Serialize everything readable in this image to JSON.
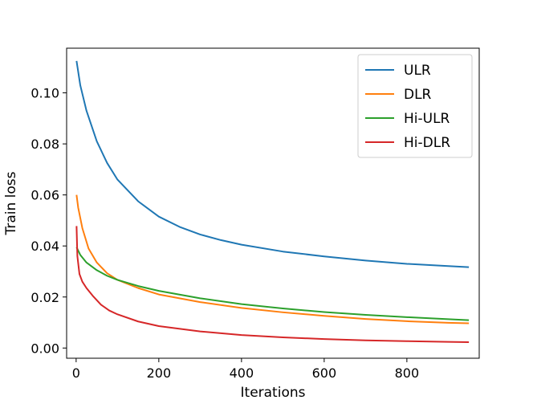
{
  "chart_data": {
    "type": "line",
    "xlabel": "Iterations",
    "ylabel": "Train loss",
    "xlim": [
      -23,
      975
    ],
    "ylim": [
      -0.004,
      0.1175
    ],
    "xticks": [
      0,
      200,
      400,
      600,
      800
    ],
    "xtick_labels": [
      "0",
      "200",
      "400",
      "600",
      "800"
    ],
    "yticks": [
      0.0,
      0.02,
      0.04,
      0.06,
      0.08,
      0.1
    ],
    "ytick_labels": [
      "0.00",
      "0.02",
      "0.04",
      "0.06",
      "0.08",
      "0.10"
    ],
    "grid": false,
    "legend_position": "top-right",
    "series": [
      {
        "name": "ULR",
        "color": "#1f77b4",
        "points": [
          [
            1,
            0.1125
          ],
          [
            10,
            0.103
          ],
          [
            25,
            0.093
          ],
          [
            50,
            0.081
          ],
          [
            75,
            0.0725
          ],
          [
            100,
            0.066
          ],
          [
            150,
            0.0575
          ],
          [
            200,
            0.0515
          ],
          [
            250,
            0.0475
          ],
          [
            300,
            0.0445
          ],
          [
            350,
            0.0423
          ],
          [
            400,
            0.0405
          ],
          [
            500,
            0.0378
          ],
          [
            600,
            0.0359
          ],
          [
            700,
            0.0343
          ],
          [
            800,
            0.033
          ],
          [
            900,
            0.0321
          ],
          [
            950,
            0.0317
          ]
        ]
      },
      {
        "name": "DLR",
        "color": "#ff7f0e",
        "points": [
          [
            1,
            0.06
          ],
          [
            5,
            0.055
          ],
          [
            15,
            0.047
          ],
          [
            30,
            0.039
          ],
          [
            50,
            0.0335
          ],
          [
            75,
            0.0293
          ],
          [
            100,
            0.0267
          ],
          [
            150,
            0.0235
          ],
          [
            200,
            0.021
          ],
          [
            300,
            0.018
          ],
          [
            400,
            0.0157
          ],
          [
            500,
            0.014
          ],
          [
            600,
            0.0126
          ],
          [
            700,
            0.0114
          ],
          [
            800,
            0.0105
          ],
          [
            900,
            0.0099
          ],
          [
            950,
            0.0097
          ]
        ]
      },
      {
        "name": "Hi-ULR",
        "color": "#2ca02c",
        "points": [
          [
            1,
            0.0395
          ],
          [
            10,
            0.0365
          ],
          [
            25,
            0.0335
          ],
          [
            50,
            0.0305
          ],
          [
            75,
            0.0283
          ],
          [
            100,
            0.0267
          ],
          [
            150,
            0.0243
          ],
          [
            200,
            0.0224
          ],
          [
            300,
            0.0195
          ],
          [
            400,
            0.0172
          ],
          [
            500,
            0.0155
          ],
          [
            600,
            0.0141
          ],
          [
            700,
            0.013
          ],
          [
            800,
            0.0121
          ],
          [
            900,
            0.0113
          ],
          [
            950,
            0.0109
          ]
        ]
      },
      {
        "name": "Hi-DLR",
        "color": "#d62728",
        "points": [
          [
            1,
            0.0478
          ],
          [
            3,
            0.036
          ],
          [
            8,
            0.029
          ],
          [
            15,
            0.026
          ],
          [
            25,
            0.0235
          ],
          [
            40,
            0.0205
          ],
          [
            60,
            0.017
          ],
          [
            80,
            0.0147
          ],
          [
            100,
            0.0132
          ],
          [
            150,
            0.0104
          ],
          [
            200,
            0.0086
          ],
          [
            300,
            0.0065
          ],
          [
            400,
            0.0051
          ],
          [
            500,
            0.0042
          ],
          [
            600,
            0.0035
          ],
          [
            700,
            0.003
          ],
          [
            800,
            0.0027
          ],
          [
            900,
            0.0024
          ],
          [
            950,
            0.0023
          ]
        ]
      }
    ]
  }
}
